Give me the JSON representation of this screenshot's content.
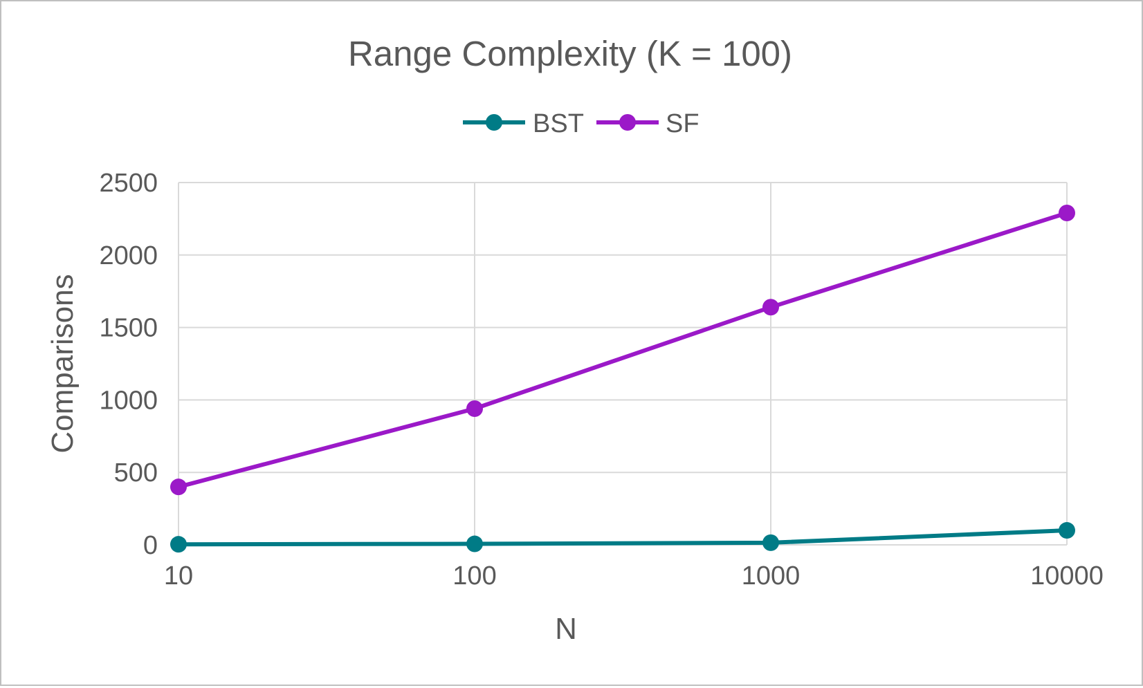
{
  "chart_data": {
    "type": "line",
    "title": "Range Complexity (K = 100)",
    "xlabel": "N",
    "ylabel": "Comparisons",
    "x_scale": "log",
    "categories": [
      "10",
      "100",
      "1000",
      "10000"
    ],
    "x": [
      10,
      100,
      1000,
      10000
    ],
    "ylim": [
      0,
      2500
    ],
    "yticks": [
      "0",
      "500",
      "1000",
      "1500",
      "2000",
      "2500"
    ],
    "ytick_values": [
      0,
      500,
      1000,
      1500,
      2000,
      2500
    ],
    "grid": true,
    "legend": "top-center",
    "series": [
      {
        "name": "BST",
        "color": "#007b86",
        "values": [
          4,
          7,
          15,
          100
        ]
      },
      {
        "name": "SF",
        "color": "#9b19c8",
        "values": [
          400,
          940,
          1640,
          2290
        ]
      }
    ]
  }
}
